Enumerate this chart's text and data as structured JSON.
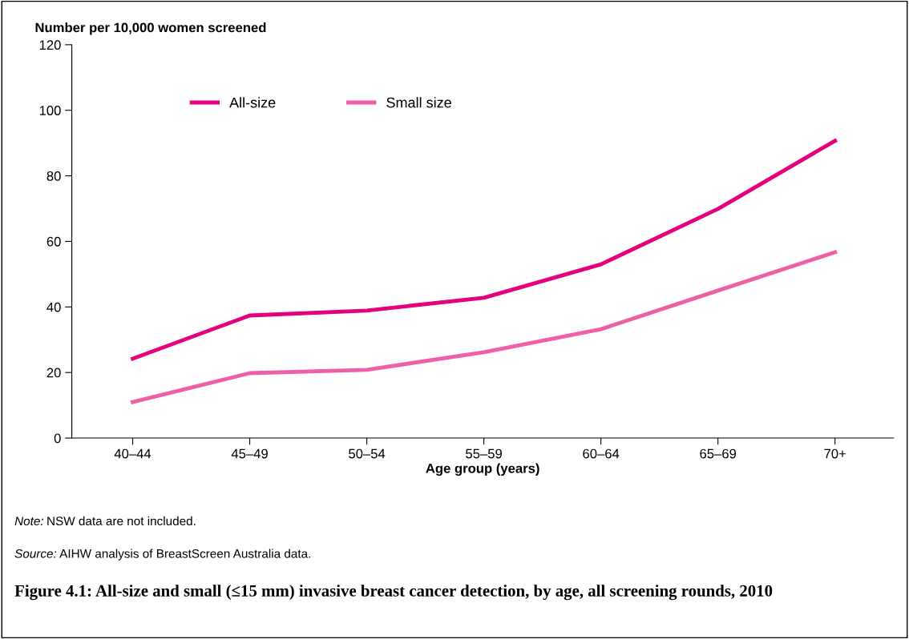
{
  "chart_data": {
    "type": "line",
    "title": "Figure 4.1: All-size and small (≤15 mm) invasive breast cancer detection, by age, all screening rounds, 2010",
    "ylabel": "Number per 10,000 women screened",
    "xlabel": "Age group (years)",
    "categories": [
      "40–44",
      "45–49",
      "50–54",
      "55–59",
      "60–64",
      "65–69",
      "70+"
    ],
    "series": [
      {
        "name": "All-size",
        "color": "#e5007d",
        "values": [
          24.2,
          37.4,
          38.9,
          42.8,
          53,
          69.9,
          90.7
        ]
      },
      {
        "name": "Small size",
        "color": "#ee5fa7",
        "values": [
          11,
          19.8,
          20.8,
          26.2,
          33.2,
          45,
          56.7
        ]
      }
    ],
    "ylim": [
      0,
      120
    ],
    "yticks": [
      0,
      20,
      40,
      60,
      80,
      100,
      120
    ],
    "grid": false,
    "legend": "top",
    "marker": "none",
    "line_style": "solid",
    "annotations": [
      "Note: NSW data are not included.",
      "Source: AIHW analysis of BreastScreen Australia data."
    ]
  }
}
